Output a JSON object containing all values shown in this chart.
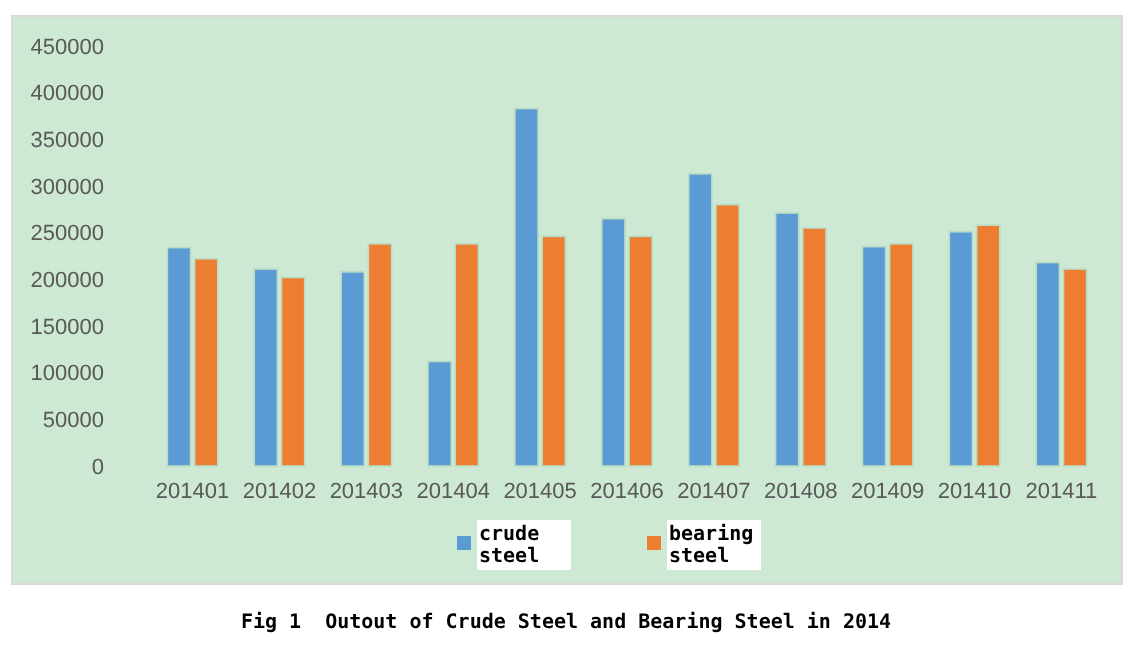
{
  "chart_data": {
    "type": "bar",
    "title": "Fig 1  Outout of Crude Steel and Bearing Steel in 2014",
    "categories": [
      "201401",
      "201402",
      "201403",
      "201404",
      "201405",
      "201406",
      "201407",
      "201408",
      "201409",
      "201410",
      "201411"
    ],
    "series": [
      {
        "name": "crude steel",
        "color": "#5b9bd5",
        "values": [
          234000,
          211000,
          208000,
          112000,
          383000,
          265000,
          313000,
          271000,
          235000,
          251000,
          218000
        ]
      },
      {
        "name": "bearing steel",
        "color": "#ed7d31",
        "values": [
          222000,
          202000,
          238000,
          238000,
          246000,
          246000,
          280000,
          255000,
          238000,
          258000,
          211000
        ]
      }
    ],
    "ylim": [
      0,
      450000
    ],
    "yticks": [
      0,
      50000,
      100000,
      150000,
      200000,
      250000,
      300000,
      350000,
      400000,
      450000
    ],
    "grid": false,
    "legend": "bottom"
  }
}
